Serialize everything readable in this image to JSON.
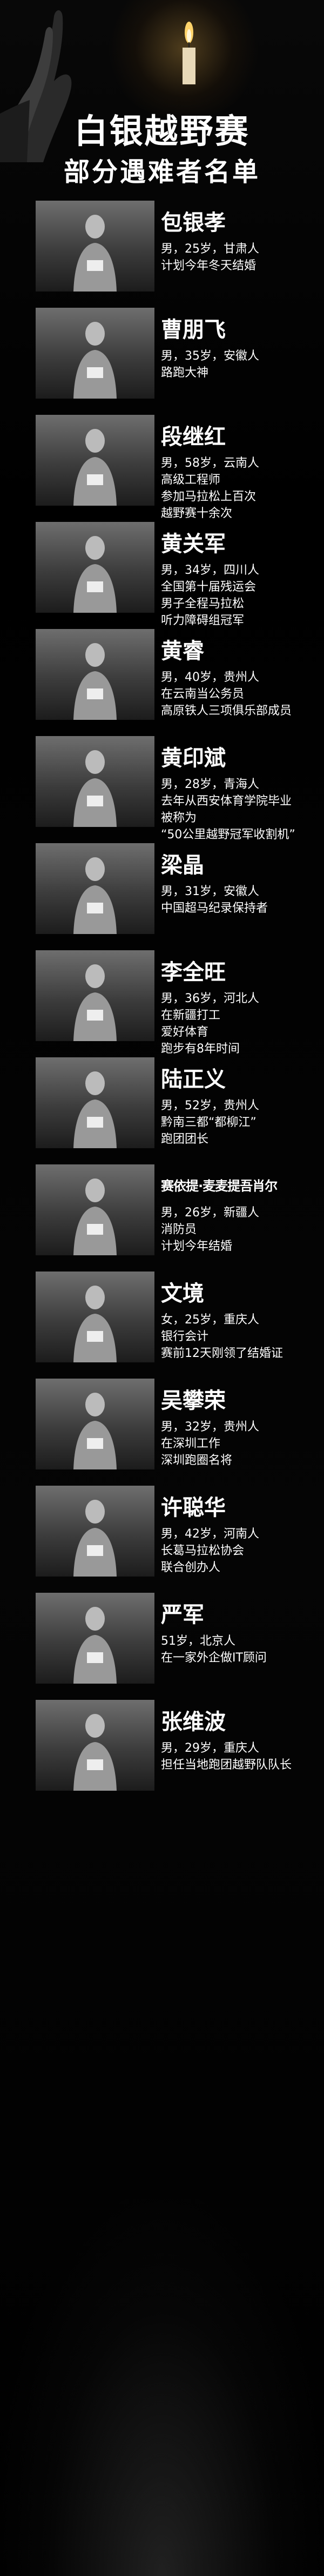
{
  "header": {
    "title": "白银越野赛",
    "subtitle": "部分遇难者名单"
  },
  "victims": [
    {
      "name": "包银孝",
      "details": [
        "男，25岁，甘肃人",
        "计划今年冬天结婚"
      ]
    },
    {
      "name": "曹朋飞",
      "details": [
        "男，35岁，安徽人",
        "路跑大神"
      ]
    },
    {
      "name": "段继红",
      "details": [
        "男，58岁，云南人",
        "高级工程师",
        "参加马拉松上百次",
        "越野赛十余次"
      ]
    },
    {
      "name": "黄关军",
      "details": [
        "男，34岁，四川人",
        "全国第十届残运会",
        "男子全程马拉松",
        "听力障碍组冠军"
      ]
    },
    {
      "name": "黄睿",
      "details": [
        "男，40岁，贵州人",
        "在云南当公务员",
        "高原铁人三项俱乐部成员"
      ]
    },
    {
      "name": "黄印斌",
      "details": [
        "男，28岁，青海人",
        "去年从西安体育学院毕业",
        "被称为",
        "“50公里越野冠军收割机”"
      ]
    },
    {
      "name": "梁晶",
      "details": [
        "男，31岁，安徽人",
        "中国超马纪录保持者"
      ]
    },
    {
      "name": "李全旺",
      "details": [
        "男，36岁，河北人",
        "在新疆打工",
        "爱好体育",
        "跑步有8年时间"
      ]
    },
    {
      "name": "陆正义",
      "details": [
        "男，52岁，贵州人",
        "黔南三都“都柳江”",
        "跑团团长"
      ]
    },
    {
      "name": "赛依提·麦麦提吾肖尔",
      "details": [
        "男，26岁，新疆人",
        "消防员",
        "计划今年结婚"
      ]
    },
    {
      "name": "文境",
      "details": [
        "女，25岁，重庆人",
        "银行会计",
        "赛前12天刚领了结婚证"
      ]
    },
    {
      "name": "吴攀荣",
      "details": [
        "男，32岁，贵州人",
        "在深圳工作",
        "深圳跑圈名将"
      ]
    },
    {
      "name": "许聪华",
      "details": [
        "男，42岁，河南人",
        "长葛马拉松协会",
        "联合创办人"
      ]
    },
    {
      "name": "严军",
      "details": [
        "51岁，北京人",
        "在一家外企做IT顾问"
      ]
    },
    {
      "name": "张维波",
      "details": [
        "男，29岁，重庆人",
        "担任当地跑团越野队队长"
      ]
    }
  ]
}
